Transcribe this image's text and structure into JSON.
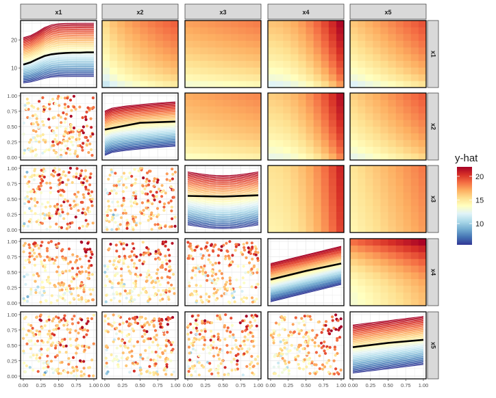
{
  "chart_data": {
    "type": "pairs-matrix",
    "description_free": true,
    "variables": [
      "x1",
      "x2",
      "x3",
      "x4",
      "x5"
    ],
    "diagonal": {
      "type": "line",
      "series_count": 50,
      "average_series": "bold black"
    },
    "upper_triangle": {
      "type": "heatmap",
      "grid": 10
    },
    "lower_triangle": {
      "type": "scatter"
    },
    "x_axis": {
      "range": [
        0,
        1
      ],
      "ticks": [
        "0.00",
        "0.25",
        "0.50",
        "0.75",
        "1.00"
      ]
    },
    "y_axis_unit": {
      "range": [
        0,
        1
      ],
      "ticks": [
        "0.00",
        "0.25",
        "0.50",
        "0.75",
        "1.00"
      ]
    },
    "y_axis_row1": {
      "range": [
        3,
        27
      ],
      "ticks": [
        "10",
        "20"
      ]
    },
    "diag_x1_ice": {
      "x": [
        0,
        0.1,
        0.2,
        0.3,
        0.4,
        0.5,
        0.6,
        0.7,
        0.8,
        0.9,
        1.0
      ],
      "average_y": [
        11.2,
        12.0,
        13.2,
        14.3,
        14.9,
        15.2,
        15.4,
        15.5,
        15.5,
        15.6,
        15.6
      ]
    },
    "diag_x2_ice_average": {
      "x": [
        0,
        0.5,
        1.0
      ],
      "y": [
        0.45,
        0.56,
        0.58
      ]
    },
    "diag_x3_ice_average": {
      "x": [
        0,
        0.5,
        1.0
      ],
      "y": [
        0.55,
        0.54,
        0.56
      ]
    },
    "diag_x4_ice_average": {
      "x": [
        0,
        0.5,
        1.0
      ],
      "y": [
        0.38,
        0.52,
        0.64
      ]
    },
    "diag_x5_ice_average": {
      "x": [
        0,
        0.5,
        1.0
      ],
      "y": [
        0.47,
        0.54,
        0.59
      ]
    },
    "legend": {
      "title": "y-hat",
      "ticks": [
        "10",
        "15",
        "20"
      ],
      "range": [
        5.5,
        22
      ],
      "colors": [
        "#313695",
        "#4575b4",
        "#74add1",
        "#abd9e9",
        "#e0f3f8",
        "#ffffbf",
        "#fee090",
        "#fdae61",
        "#f46d43",
        "#d73027",
        "#a50026"
      ]
    }
  }
}
